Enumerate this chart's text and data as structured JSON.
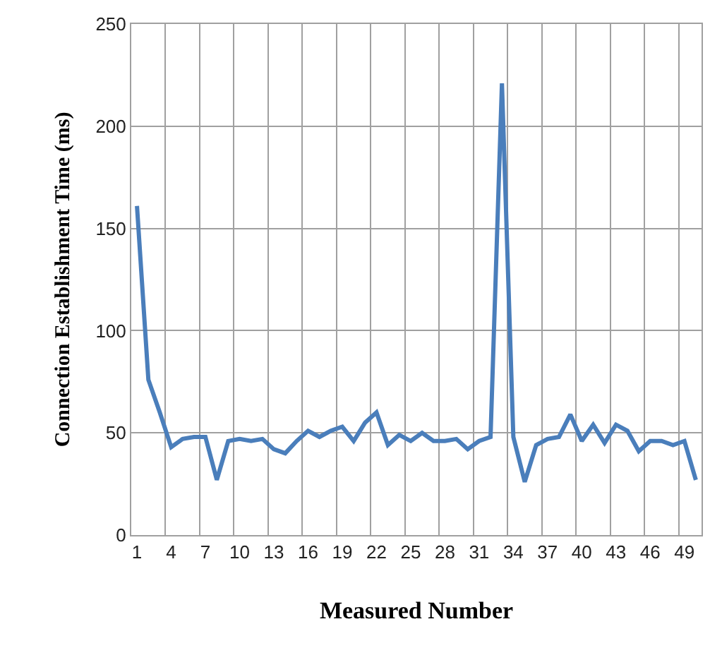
{
  "chart_data": {
    "type": "line",
    "xlabel": "Measured Number",
    "ylabel": "Connection Establishment Time (ms)",
    "categories": [
      "1",
      null,
      null,
      "4",
      null,
      null,
      "7",
      null,
      null,
      "10",
      null,
      null,
      "13",
      null,
      null,
      "16",
      null,
      null,
      "19",
      null,
      null,
      "22",
      null,
      null,
      "25",
      null,
      null,
      "28",
      null,
      null,
      "31",
      null,
      null,
      "34",
      null,
      null,
      "37",
      null,
      null,
      "40",
      null,
      null,
      "43",
      null,
      null,
      "46",
      null,
      null,
      "49",
      null
    ],
    "series": [
      {
        "color": "#4a7ebb",
        "values": [
          161,
          76,
          60,
          43,
          47,
          48,
          48,
          27,
          46,
          47,
          46,
          47,
          42,
          40,
          46,
          51,
          48,
          51,
          53,
          46,
          55,
          60,
          44,
          49,
          46,
          50,
          46,
          46,
          47,
          42,
          46,
          48,
          221,
          48,
          26,
          44,
          47,
          48,
          59,
          46,
          54,
          45,
          54,
          51,
          41,
          46,
          46,
          44,
          46,
          27
        ]
      }
    ],
    "ylim": [
      0,
      250
    ],
    "yticks": [
      0,
      50,
      100,
      150,
      200,
      250
    ],
    "grid": true,
    "marker": "none",
    "line_style": "solid"
  }
}
